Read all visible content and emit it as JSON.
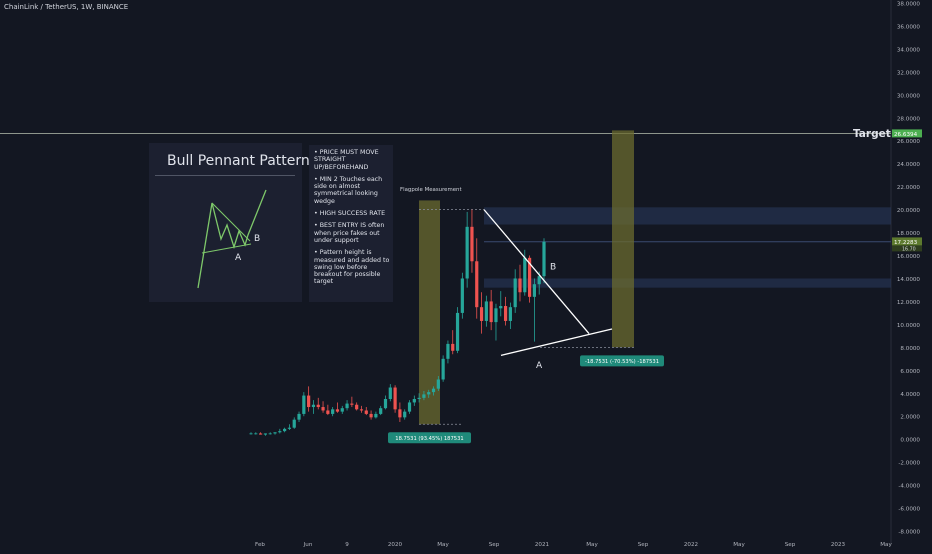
{
  "symbol_title": "ChainLink / TetherUS, 1W, BINANCE",
  "info_box": {
    "title": "Bull Pennant Pattern",
    "label_a": "A",
    "label_b": "B"
  },
  "notes": [
    "• PRICE MUST MOVE STRAIGHT UP/BEFOREHAND",
    "• MIN 2 Touches each side on almost symmetrical looking wedge",
    "• HIGH SUCCESS RATE",
    "• BEST ENTRY IS often when price fakes out under support",
    "• Pattern height is measured and added to swing low before breakout for possible target"
  ],
  "colors": {
    "background": "#131722",
    "up": "#26a69a",
    "down": "#ef5350",
    "measure_fill": "#6b6b2f",
    "measure_label": "#1f8a7a",
    "zone": "#2a3a5e",
    "target_line": "#b8c0b0",
    "target_tag": "#4caf50",
    "price_tag": "#5d7a2e",
    "line_white": "#ffffff",
    "info_green": "#7ec86a"
  },
  "chart_data": {
    "type": "candlestick",
    "symbol": "ChainLink / TetherUS, 1W, BINANCE",
    "ylim": [
      -8,
      38
    ],
    "y_ticks": [
      "38.0000",
      "36.0000",
      "34.0000",
      "32.0000",
      "30.0000",
      "28.0000",
      "26.0000",
      "24.0000",
      "22.0000",
      "20.0000",
      "18.0000",
      "16.0000",
      "14.0000",
      "12.0000",
      "10.0000",
      "8.0000",
      "6.0000",
      "4.0000",
      "2.0000",
      "0.0000",
      "-2.0000",
      "-4.0000",
      "-6.0000",
      "-8.0000"
    ],
    "x_ticks": [
      "Feb",
      "Jun",
      "9",
      "2020",
      "May",
      "Sep",
      "2021",
      "May",
      "Sep",
      "2022",
      "May",
      "Sep",
      "2023",
      "May"
    ],
    "ohlc": [
      [
        0.5,
        0.6,
        0.4,
        0.5
      ],
      [
        0.5,
        0.6,
        0.4,
        0.5
      ],
      [
        0.5,
        0.6,
        0.4,
        0.4
      ],
      [
        0.4,
        0.5,
        0.3,
        0.5
      ],
      [
        0.5,
        0.6,
        0.4,
        0.5
      ],
      [
        0.5,
        0.6,
        0.4,
        0.6
      ],
      [
        0.6,
        0.9,
        0.5,
        0.7
      ],
      [
        0.7,
        1.0,
        0.6,
        0.9
      ],
      [
        0.9,
        1.3,
        0.8,
        1.0
      ],
      [
        1.0,
        1.9,
        0.9,
        1.7
      ],
      [
        1.7,
        2.4,
        1.5,
        2.2
      ],
      [
        2.2,
        4.1,
        2.0,
        3.8
      ],
      [
        3.8,
        4.6,
        2.4,
        2.8
      ],
      [
        2.8,
        3.4,
        2.2,
        3.0
      ],
      [
        3.0,
        3.6,
        2.6,
        2.8
      ],
      [
        2.8,
        3.3,
        2.3,
        2.5
      ],
      [
        2.5,
        3.0,
        2.1,
        2.2
      ],
      [
        2.2,
        2.8,
        2.0,
        2.6
      ],
      [
        2.6,
        3.2,
        2.3,
        2.4
      ],
      [
        2.4,
        2.9,
        2.2,
        2.7
      ],
      [
        2.7,
        3.4,
        2.5,
        3.1
      ],
      [
        3.1,
        3.7,
        2.8,
        3.0
      ],
      [
        3.0,
        3.2,
        2.5,
        2.6
      ],
      [
        2.6,
        2.9,
        2.3,
        2.5
      ],
      [
        2.5,
        2.8,
        2.1,
        2.2
      ],
      [
        2.2,
        2.5,
        1.7,
        1.9
      ],
      [
        1.9,
        2.4,
        1.8,
        2.2
      ],
      [
        2.2,
        2.9,
        2.1,
        2.7
      ],
      [
        2.7,
        3.8,
        2.6,
        3.5
      ],
      [
        3.5,
        4.8,
        3.3,
        4.5
      ],
      [
        4.5,
        4.7,
        2.3,
        2.6
      ],
      [
        2.6,
        3.2,
        1.5,
        1.9
      ],
      [
        1.9,
        2.6,
        1.7,
        2.4
      ],
      [
        2.4,
        3.4,
        2.2,
        3.2
      ],
      [
        3.2,
        3.8,
        2.9,
        3.5
      ],
      [
        3.5,
        4.0,
        3.2,
        3.6
      ],
      [
        3.6,
        4.2,
        3.4,
        3.9
      ],
      [
        3.9,
        4.3,
        3.6,
        4.1
      ],
      [
        4.1,
        4.6,
        3.8,
        4.4
      ],
      [
        4.4,
        5.5,
        4.2,
        5.2
      ],
      [
        5.2,
        7.3,
        5.0,
        7.0
      ],
      [
        7.0,
        8.6,
        6.6,
        8.3
      ],
      [
        8.3,
        9.5,
        7.4,
        7.7
      ],
      [
        7.7,
        11.5,
        7.5,
        11.0
      ],
      [
        11.0,
        14.5,
        10.5,
        14.0
      ],
      [
        14.0,
        19.8,
        13.2,
        18.5
      ],
      [
        18.5,
        20.0,
        14.5,
        15.5
      ],
      [
        15.5,
        17.5,
        10.5,
        11.5
      ],
      [
        11.5,
        12.8,
        9.2,
        10.3
      ],
      [
        10.3,
        12.5,
        9.8,
        12.0
      ],
      [
        12.0,
        13.0,
        9.5,
        10.2
      ],
      [
        10.2,
        11.8,
        8.6,
        11.4
      ],
      [
        11.4,
        12.9,
        10.7,
        11.6
      ],
      [
        11.6,
        12.4,
        9.9,
        10.3
      ],
      [
        10.3,
        11.9,
        9.6,
        11.5
      ],
      [
        11.5,
        14.8,
        11.0,
        14.0
      ],
      [
        14.0,
        15.2,
        12.0,
        12.8
      ],
      [
        12.8,
        16.5,
        12.5,
        15.8
      ],
      [
        15.8,
        16.0,
        11.9,
        12.4
      ],
      [
        12.4,
        14.0,
        8.5,
        13.5
      ],
      [
        13.5,
        14.6,
        12.6,
        14.2
      ],
      [
        14.2,
        17.5,
        13.6,
        17.2
      ]
    ],
    "pennant_resistance": [
      [
        20.0,
        "Aug 2020"
      ],
      [
        9.2,
        "Jul 2021"
      ]
    ],
    "pennant_support": [
      [
        7.3,
        "Sep 2020"
      ],
      [
        9.5,
        "Jul 2021"
      ]
    ],
    "flagpole_label": "Flagpole Measurement",
    "measure_label_1": "18.7531 (93.45%) 187531",
    "measure_label_2": "-18.7531 (-70.53%) -187531",
    "target_label": "Target",
    "target_price": "26.6394",
    "last_price": "17.2283",
    "last_price_sub": "16.70",
    "label_a": "A",
    "label_b": "B"
  }
}
